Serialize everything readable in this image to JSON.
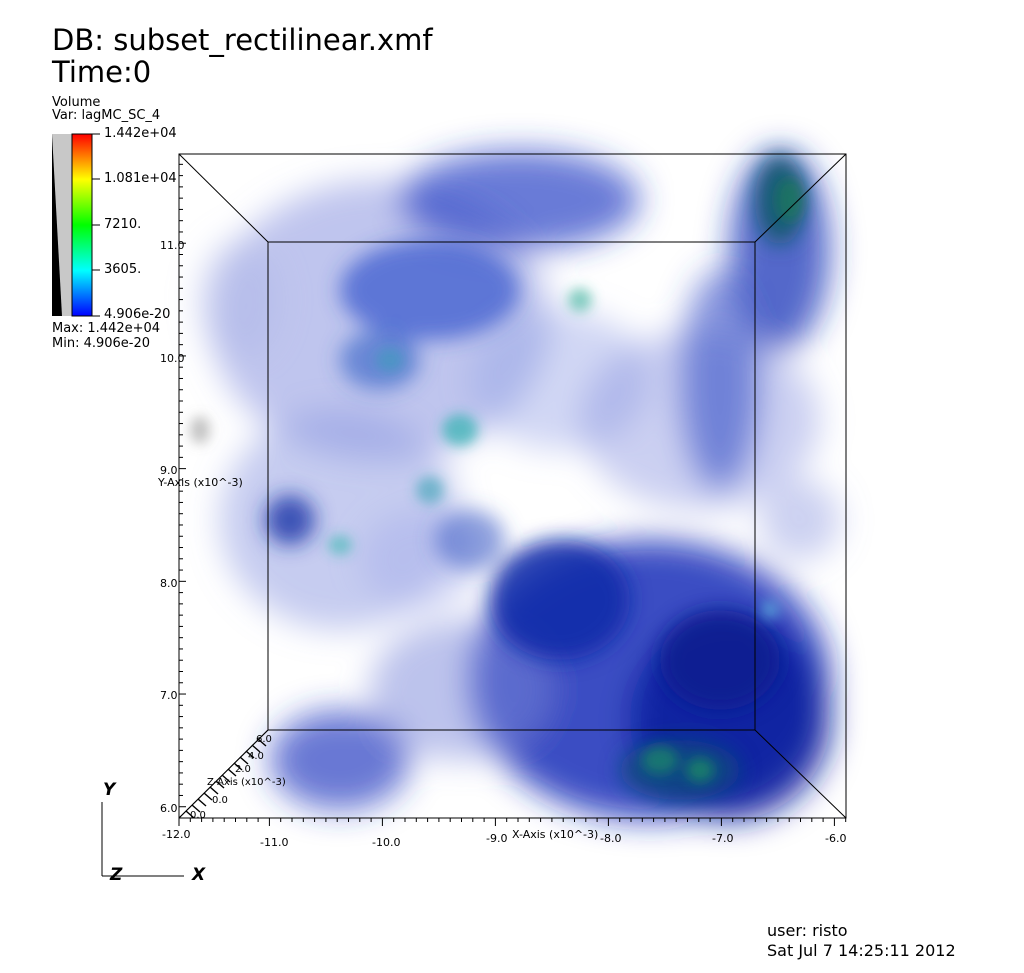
{
  "header": {
    "db_label": "DB: subset_rectilinear.xmf",
    "time_label": "Time:0"
  },
  "legend": {
    "plot_type": "Volume",
    "variable": "Var: lagMC_SC_4",
    "ticks": [
      "1.442e+04",
      "1.081e+04",
      "7210.",
      "3605.",
      "4.906e-20"
    ],
    "max_label": "Max:  1.442e+04",
    "min_label": "Min:  4.906e-20"
  },
  "axes": {
    "x_title": "X-Axis (x10^-3)",
    "y_title": "Y-Axis (x10^-3)",
    "z_title": "Z-Axis (x10^-3)",
    "x_ticks": [
      "-12.0",
      "-11.0",
      "-10.0",
      "-9.0",
      "-8.0",
      "-7.0",
      "-6.0"
    ],
    "y_ticks": [
      "6.0",
      "7.0",
      "8.0",
      "9.0",
      "10.0",
      "11.0"
    ],
    "z_ticks": [
      "0.0",
      "2.0",
      "4.0",
      "6.0"
    ]
  },
  "triad": {
    "y": "Y",
    "z": "Z",
    "x": "X"
  },
  "footer": {
    "user": "user: risto",
    "date": "Sat Jul  7 14:25:11 2012"
  }
}
